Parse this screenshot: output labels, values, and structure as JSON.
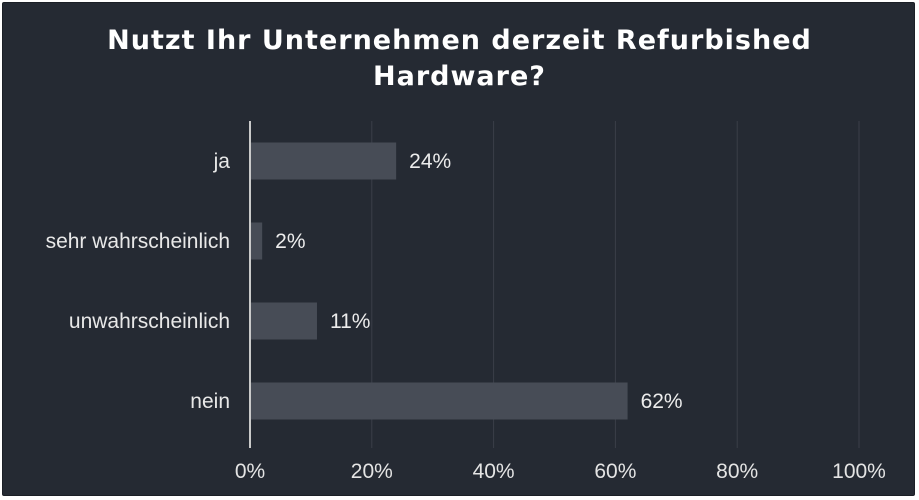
{
  "chart_data": {
    "type": "bar",
    "orientation": "horizontal",
    "title": "Nutzt Ihr Unternehmen derzeit Refurbished Hardware?",
    "title_lines": [
      "Nutzt Ihr Unternehmen derzeit Refurbished",
      "Hardware?"
    ],
    "categories": [
      "ja",
      "sehr wahrscheinlich",
      "unwahrscheinlich",
      "nein"
    ],
    "values": [
      24,
      2,
      11,
      62
    ],
    "value_labels": [
      "24%",
      "2%",
      "11%",
      "62%"
    ],
    "xlim": [
      0,
      100
    ],
    "x_ticks": [
      0,
      20,
      40,
      60,
      80,
      100
    ],
    "x_tick_labels": [
      "0%",
      "20%",
      "40%",
      "60%",
      "80%",
      "100%"
    ],
    "grid": true,
    "legend": "none",
    "colors": {
      "background": "#252a33",
      "bar": "#474c56",
      "grid": "#3a3f48",
      "axis": "#c9c9c9",
      "text": "#e8e8e8"
    }
  }
}
